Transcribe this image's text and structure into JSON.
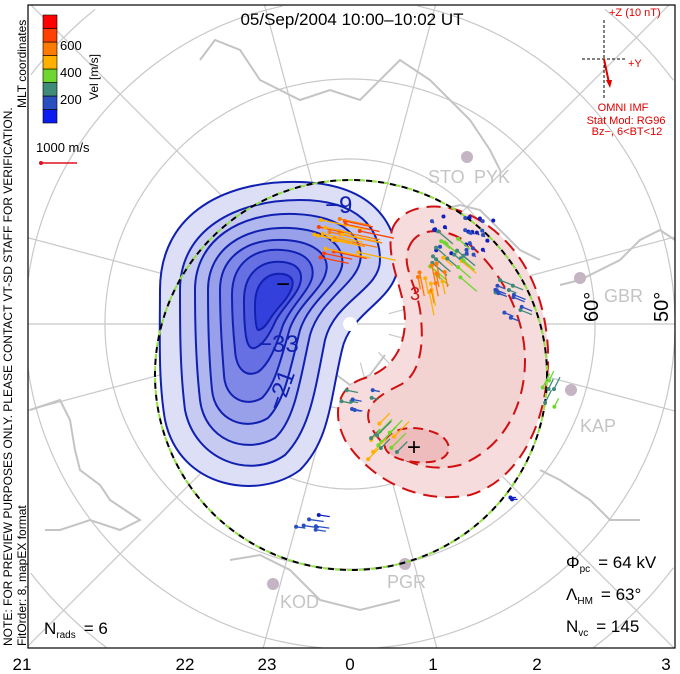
{
  "title": "05/Sep/2004  10:00–10:02 UT",
  "side_note": {
    "line1": "NOTE: FOR PREVIEW PURPOSES ONLY. PLEASE CONTACT VT-SD STAFF FOR VERIFICATION.",
    "line2": "FitOrder: 8,  mapEX format",
    "coords": "MLT coordinates"
  },
  "colorbar": {
    "label": "Vel [m/s]",
    "ticks": [
      "200",
      "400",
      "600"
    ],
    "colors": [
      "#0b1cf0",
      "#2a4fc0",
      "#3f8a78",
      "#6fd630",
      "#ffb000",
      "#ff7a00",
      "#ff4000",
      "#ff0000"
    ]
  },
  "scale_vector": {
    "label": "1000 m/s",
    "color": "#e01020"
  },
  "imf": {
    "z_label": "+Z (10 nT)",
    "y_label": "+Y",
    "source": "OMNI IMF",
    "model": "Stat Mod: RG96",
    "condition": "Bz−, 6<BT<12",
    "color": "#e00000"
  },
  "stations": [
    "STO",
    "PYK",
    "GBR",
    "KAP",
    "PGR",
    "KOD"
  ],
  "lat_labels": [
    "60°",
    "50°"
  ],
  "contour_labels": [
    "−9",
    "−33",
    "−21",
    "3",
    "−",
    "+"
  ],
  "mlt_labels": [
    "21",
    "22",
    "23",
    "0",
    "1",
    "2",
    "3"
  ],
  "stats": {
    "phi_pc": {
      "sym": "Φ",
      "sub": "pc",
      "value": "=  64  kV"
    },
    "lambda_hm": {
      "sym": "Λ",
      "sub": "HM",
      "value": "=  63°"
    },
    "n_vc": {
      "sym": "N",
      "sub": "vc",
      "value": "=  145"
    },
    "n_rads": {
      "sym": "N",
      "sub": "rads",
      "value": "=  6"
    }
  }
}
